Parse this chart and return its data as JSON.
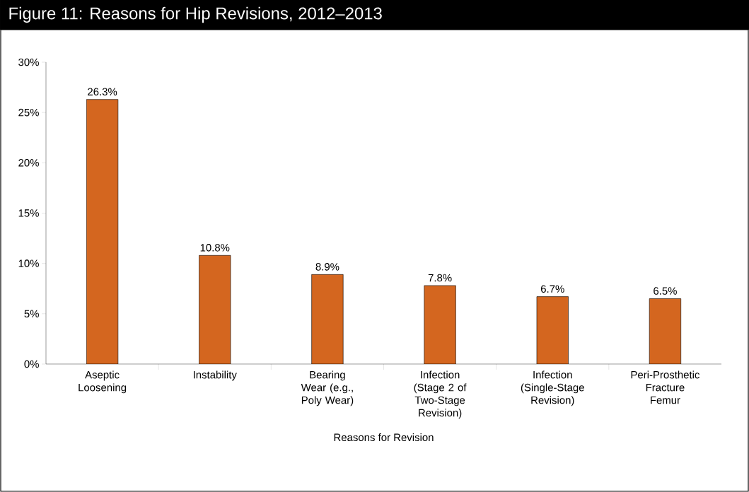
{
  "chart_data": {
    "type": "bar",
    "title": "Figure 11: Reasons for Hip Revisions, 2012–2013",
    "xlabel": "Reasons for Revision",
    "categories": [
      "Aseptic Loosening",
      "Instability",
      "Bearing Wear (e.g., Poly Wear)",
      "Infection (Stage 2 of Two-Stage Revision)",
      "Infection (Single-Stage Revision)",
      "Peri-Prosthetic Fracture Femur"
    ],
    "values": [
      26.3,
      10.8,
      8.9,
      7.8,
      6.7,
      6.5
    ],
    "value_labels": [
      "26.3%",
      "10.8%",
      "8.9%",
      "7.8%",
      "6.7%",
      "6.5%"
    ],
    "color": "#d4661f",
    "ylim": [
      0,
      30
    ],
    "yticks": [
      {
        "value": 0,
        "label": "0%"
      },
      {
        "value": 5,
        "label": "5%"
      },
      {
        "value": 10,
        "label": "10%"
      },
      {
        "value": 15,
        "label": "15%"
      },
      {
        "value": 20,
        "label": "20%"
      },
      {
        "value": 25,
        "label": "25%"
      },
      {
        "value": 30,
        "label": "30%"
      }
    ],
    "grid": false
  }
}
